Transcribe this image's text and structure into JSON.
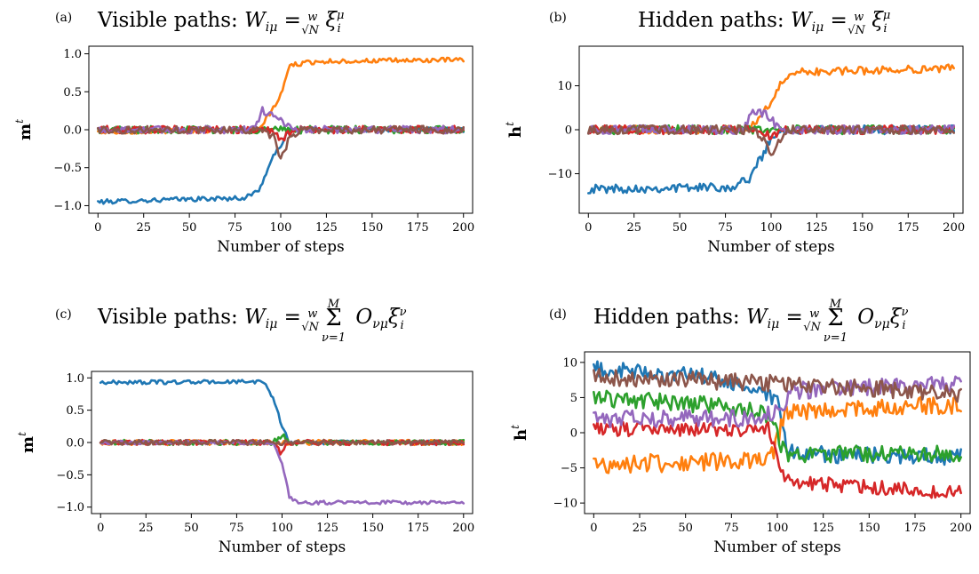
{
  "colors": [
    "#1f77b4",
    "#ff7f0e",
    "#2ca02c",
    "#d62728",
    "#9467bd",
    "#8c564b"
  ],
  "chart_data": [
    {
      "type": "line",
      "panel_label": "(a)",
      "title": "Visible paths: W_{iμ} = (w/√N) ξ_i^μ",
      "title_prefix": "Visible paths: ",
      "xlabel": "Number of steps",
      "ylabel": "m",
      "ylabel_superscript": "t",
      "xlim": [
        -5,
        205
      ],
      "ylim": [
        -1.1,
        1.1
      ],
      "xticks": [
        0,
        25,
        50,
        75,
        100,
        125,
        150,
        175,
        200
      ],
      "yticks": [
        -1.0,
        -0.5,
        0.0,
        0.5,
        1.0
      ],
      "ytick_labels": [
        "−1.0",
        "−0.5",
        "0.0",
        "0.5",
        "1.0"
      ],
      "grid": false,
      "x": [
        0,
        200
      ],
      "series": [
        {
          "color_index": 0,
          "keypoints": [
            [
              0,
              -0.95
            ],
            [
              40,
              -0.92
            ],
            [
              80,
              -0.9
            ],
            [
              88,
              -0.8
            ],
            [
              95,
              -0.4
            ],
            [
              100,
              -0.2
            ],
            [
              105,
              0.0
            ],
            [
              200,
              0.0
            ]
          ],
          "noise": 0.03
        },
        {
          "color_index": 1,
          "keypoints": [
            [
              0,
              -0.03
            ],
            [
              88,
              0.0
            ],
            [
              95,
              0.25
            ],
            [
              100,
              0.45
            ],
            [
              105,
              0.85
            ],
            [
              120,
              0.9
            ],
            [
              200,
              0.92
            ]
          ],
          "noise": 0.03
        },
        {
          "color_index": 2,
          "keypoints": [
            [
              0,
              0.0
            ],
            [
              200,
              0.0
            ]
          ],
          "noise": 0.05
        },
        {
          "color_index": 3,
          "keypoints": [
            [
              0,
              0.0
            ],
            [
              95,
              0.0
            ],
            [
              100,
              -0.15
            ],
            [
              104,
              -0.05
            ],
            [
              108,
              0.0
            ],
            [
              200,
              0.0
            ]
          ],
          "noise": 0.05
        },
        {
          "color_index": 4,
          "keypoints": [
            [
              0,
              0.0
            ],
            [
              85,
              0.0
            ],
            [
              90,
              0.25
            ],
            [
              97,
              0.2
            ],
            [
              103,
              0.05
            ],
            [
              108,
              0.0
            ],
            [
              200,
              0.0
            ]
          ],
          "noise": 0.05
        },
        {
          "color_index": 5,
          "keypoints": [
            [
              0,
              0.0
            ],
            [
              90,
              0.0
            ],
            [
              96,
              -0.1
            ],
            [
              100,
              -0.4
            ],
            [
              105,
              -0.1
            ],
            [
              110,
              0.0
            ],
            [
              200,
              0.0
            ]
          ],
          "noise": 0.05
        }
      ]
    },
    {
      "type": "line",
      "panel_label": "(b)",
      "title": "Hidden paths: W_{iμ} = (w/√N) ξ_i^μ",
      "title_prefix": "Hidden paths: ",
      "xlabel": "Number of steps",
      "ylabel": "h",
      "ylabel_superscript": "t",
      "xlim": [
        -5,
        205
      ],
      "ylim": [
        -19,
        19
      ],
      "xticks": [
        0,
        25,
        50,
        75,
        100,
        125,
        150,
        175,
        200
      ],
      "yticks": [
        -10,
        0,
        10
      ],
      "ytick_labels": [
        "−10",
        "0",
        "10"
      ],
      "grid": false,
      "x": [
        0,
        200
      ],
      "series": [
        {
          "color_index": 0,
          "keypoints": [
            [
              0,
              -13.5
            ],
            [
              80,
              -13
            ],
            [
              88,
              -11
            ],
            [
              95,
              -6
            ],
            [
              100,
              -2
            ],
            [
              105,
              0.0
            ],
            [
              200,
              0.0
            ]
          ],
          "noise": 1.0
        },
        {
          "color_index": 1,
          "keypoints": [
            [
              0,
              0.0
            ],
            [
              88,
              0.0
            ],
            [
              95,
              4
            ],
            [
              100,
              6
            ],
            [
              105,
              10
            ],
            [
              110,
              13
            ],
            [
              200,
              14
            ]
          ],
          "noise": 0.9
        },
        {
          "color_index": 2,
          "keypoints": [
            [
              0,
              0.0
            ],
            [
              200,
              0.0
            ]
          ],
          "noise": 1.0
        },
        {
          "color_index": 3,
          "keypoints": [
            [
              0,
              0.0
            ],
            [
              95,
              0.0
            ],
            [
              100,
              -2
            ],
            [
              105,
              0.0
            ],
            [
              200,
              0.0
            ]
          ],
          "noise": 1.0
        },
        {
          "color_index": 4,
          "keypoints": [
            [
              0,
              0.0
            ],
            [
              85,
              0.0
            ],
            [
              90,
              4.5
            ],
            [
              97,
              3.5
            ],
            [
              103,
              1
            ],
            [
              108,
              0.0
            ],
            [
              200,
              0.0
            ]
          ],
          "noise": 1.0
        },
        {
          "color_index": 5,
          "keypoints": [
            [
              0,
              0.0
            ],
            [
              90,
              0.0
            ],
            [
              96,
              -2
            ],
            [
              100,
              -5.5
            ],
            [
              105,
              -2
            ],
            [
              110,
              0.0
            ],
            [
              200,
              0.0
            ]
          ],
          "noise": 1.0
        }
      ]
    },
    {
      "type": "line",
      "panel_label": "(c)",
      "title": "Visible paths: W_{iμ} = (w/√N) Σ_{ν=1}^{M} O_{νμ} ξ_i^ν",
      "title_prefix": "Visible paths: ",
      "xlabel": "Number of steps",
      "ylabel": "m",
      "ylabel_superscript": "t",
      "xlim": [
        -5,
        205
      ],
      "ylim": [
        -1.1,
        1.1
      ],
      "xticks": [
        0,
        25,
        50,
        75,
        100,
        125,
        150,
        175,
        200
      ],
      "yticks": [
        -1.0,
        -0.5,
        0.0,
        0.5,
        1.0
      ],
      "ytick_labels": [
        "−1.0",
        "−0.5",
        "0.0",
        "0.5",
        "1.0"
      ],
      "grid": false,
      "x": [
        0,
        200
      ],
      "series": [
        {
          "color_index": 0,
          "keypoints": [
            [
              0,
              0.93
            ],
            [
              90,
              0.94
            ],
            [
              95,
              0.7
            ],
            [
              100,
              0.25
            ],
            [
              104,
              0.0
            ],
            [
              200,
              0.0
            ]
          ],
          "noise": 0.03
        },
        {
          "color_index": 1,
          "keypoints": [
            [
              0,
              0.0
            ],
            [
              200,
              0.0
            ]
          ],
          "noise": 0.04
        },
        {
          "color_index": 2,
          "keypoints": [
            [
              0,
              0.0
            ],
            [
              95,
              0.0
            ],
            [
              100,
              0.12
            ],
            [
              104,
              0.0
            ],
            [
              200,
              0.0
            ]
          ],
          "noise": 0.04
        },
        {
          "color_index": 3,
          "keypoints": [
            [
              0,
              0.0
            ],
            [
              95,
              0.0
            ],
            [
              99,
              -0.15
            ],
            [
              103,
              0.0
            ],
            [
              200,
              0.0
            ]
          ],
          "noise": 0.04
        },
        {
          "color_index": 4,
          "keypoints": [
            [
              0,
              0.0
            ],
            [
              95,
              0.0
            ],
            [
              100,
              -0.3
            ],
            [
              104,
              -0.85
            ],
            [
              110,
              -0.93
            ],
            [
              200,
              -0.93
            ]
          ],
          "noise": 0.03
        },
        {
          "color_index": 5,
          "keypoints": [
            [
              0,
              0.0
            ],
            [
              200,
              0.0
            ]
          ],
          "noise": 0.04
        }
      ]
    },
    {
      "type": "line",
      "panel_label": "(d)",
      "title": "Hidden paths: W_{iμ} = (w/√N) Σ_{ν=1}^{M} O_{νμ} ξ_i^ν",
      "title_prefix": "Hidden paths: ",
      "xlabel": "Number of steps",
      "ylabel": "h",
      "ylabel_superscript": "t",
      "xlim": [
        -5,
        205
      ],
      "ylim": [
        -11.5,
        11.5
      ],
      "xticks": [
        0,
        25,
        50,
        75,
        100,
        125,
        150,
        175,
        200
      ],
      "yticks": [
        -10,
        -5,
        0,
        5,
        10
      ],
      "ytick_labels": [
        "−10",
        "−5",
        "0",
        "5",
        "10"
      ],
      "grid": false,
      "x": [
        0,
        200
      ],
      "series": [
        {
          "color_index": 0,
          "keypoints": [
            [
              0,
              9
            ],
            [
              60,
              8
            ],
            [
              90,
              6
            ],
            [
              100,
              4
            ],
            [
              105,
              -2
            ],
            [
              110,
              -3
            ],
            [
              200,
              -3.5
            ]
          ],
          "noise": 1.2
        },
        {
          "color_index": 1,
          "keypoints": [
            [
              0,
              -4.5
            ],
            [
              95,
              -4
            ],
            [
              98,
              -3
            ],
            [
              102,
              1
            ],
            [
              106,
              3
            ],
            [
              200,
              4
            ]
          ],
          "noise": 1.3
        },
        {
          "color_index": 2,
          "keypoints": [
            [
              0,
              5
            ],
            [
              60,
              4
            ],
            [
              90,
              3
            ],
            [
              98,
              1
            ],
            [
              104,
              -3
            ],
            [
              200,
              -3
            ]
          ],
          "noise": 1.2
        },
        {
          "color_index": 3,
          "keypoints": [
            [
              0,
              0.5
            ],
            [
              95,
              0.5
            ],
            [
              100,
              -4
            ],
            [
              106,
              -7
            ],
            [
              200,
              -8.5
            ]
          ],
          "noise": 1.0
        },
        {
          "color_index": 4,
          "keypoints": [
            [
              0,
              2
            ],
            [
              90,
              2
            ],
            [
              100,
              3
            ],
            [
              110,
              6
            ],
            [
              200,
              7
            ]
          ],
          "noise": 1.2
        },
        {
          "color_index": 5,
          "keypoints": [
            [
              0,
              8
            ],
            [
              100,
              7
            ],
            [
              200,
              5.5
            ]
          ],
          "noise": 1.2
        }
      ]
    }
  ]
}
